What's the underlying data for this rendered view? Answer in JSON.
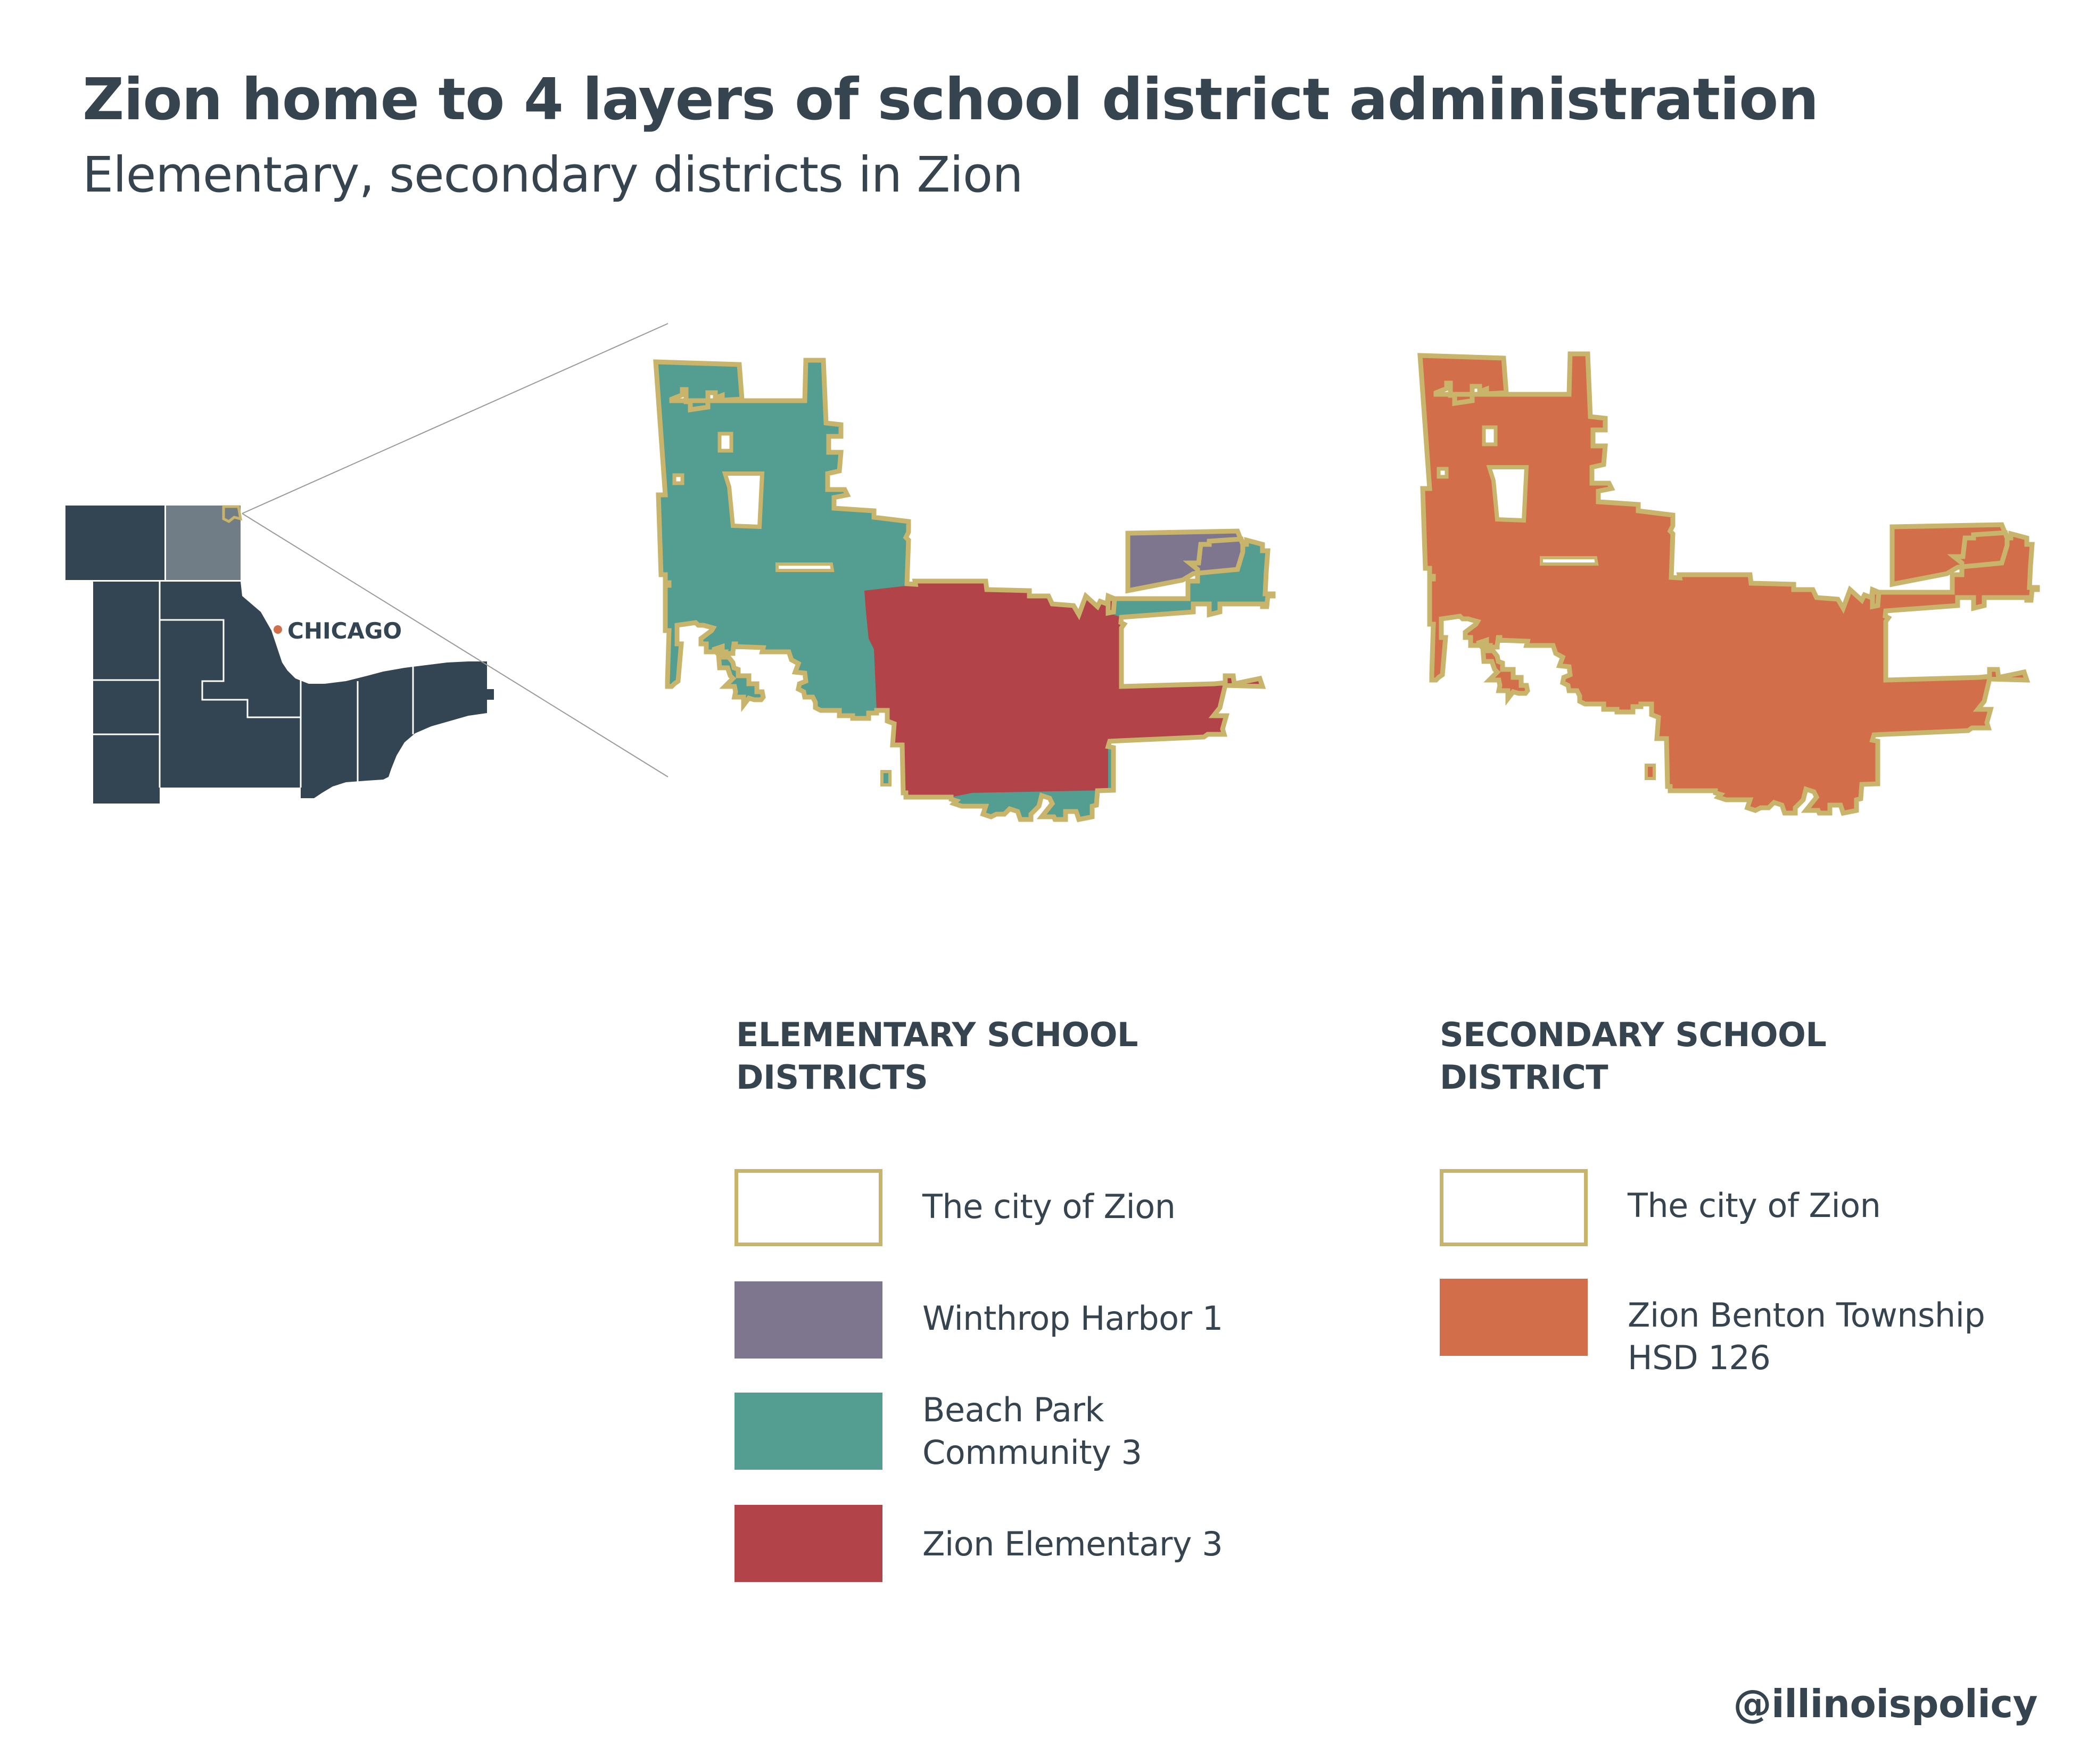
{
  "header": {
    "title": "Zion home to 4 layers of school district administration",
    "subtitle": "Elementary, secondary districts in Zion"
  },
  "locator_map": {
    "city_label": "CHICAGO"
  },
  "colors": {
    "city_outline": "#c9b46b",
    "winthrop_harbor": "#7e768e",
    "beach_park": "#549d91",
    "zion_elementary": "#b24348",
    "zion_benton": "#d36e4b",
    "county_dark": "#334552",
    "county_highlight": "#717d86",
    "chicago_dot": "#d36e4b",
    "text": "#35444f"
  },
  "legend_elementary": {
    "heading": [
      "ELEMENTARY SCHOOL",
      "DISTRICTS"
    ],
    "items": [
      {
        "label": [
          "The city of Zion"
        ],
        "swatch": "outline"
      },
      {
        "label": [
          "Winthrop Harbor 1"
        ],
        "swatch": "#7e768e"
      },
      {
        "label": [
          "Beach Park",
          "Community 3"
        ],
        "swatch": "#549d91"
      },
      {
        "label": [
          "Zion Elementary 3"
        ],
        "swatch": "#b24348"
      }
    ]
  },
  "legend_secondary": {
    "heading": [
      "SECONDARY SCHOOL",
      "DISTRICT"
    ],
    "items": [
      {
        "label": [
          "The city of Zion"
        ],
        "swatch": "outline"
      },
      {
        "label": [
          "Zion Benton Township",
          "HSD 126"
        ],
        "swatch": "#d36e4b"
      }
    ]
  },
  "credit": "@illinoispolicy"
}
